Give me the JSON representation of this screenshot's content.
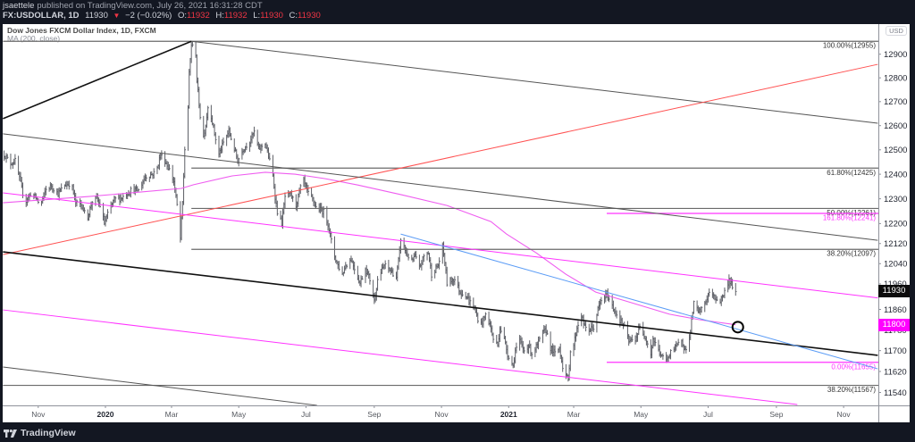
{
  "header": {
    "author": "jsaettele",
    "published_text": "published on TradingView.com, July 26, 2021 16:31:28 CDT",
    "symbol": "FX:USDOLLAR, 1D",
    "last": "11930",
    "change_arrow": "▼",
    "change": "−2 (−0.02%)",
    "ohlc": [
      {
        "key": "O:",
        "value": "11932"
      },
      {
        "key": "H:",
        "value": "11932"
      },
      {
        "key": "L:",
        "value": "11930"
      },
      {
        "key": "C:",
        "value": "11930"
      }
    ]
  },
  "legend": {
    "title": "Dow Jones FXCM Dollar Index, 1D, FXCM",
    "indicator": "MA (200, close)"
  },
  "price_axis": {
    "currency": "USD",
    "last_price_label": "11930",
    "last_price_value": 11930,
    "ma_price_label": "11800",
    "ma_price_value": 11800
  },
  "footer": {
    "brand": "TradingView",
    "logo_icon": "tradingview-logo-icon"
  },
  "colors": {
    "background": "#131722",
    "pane": "#ffffff",
    "down": "#f23645",
    "bars": "#5d5f66",
    "ma": "#ef5cf0",
    "magenta": "#ff33ff",
    "gray_line": "#555555",
    "fib_gray": "#6a6a6a",
    "black_line": "#111111",
    "blue": "#5b9cf6",
    "red": "#ff5252"
  },
  "chart_data": {
    "type": "line",
    "title": "Dow Jones FXCM Dollar Index, 1D, FXCM",
    "subtitle": "MA (200, close)",
    "xlabel": "",
    "ylabel": "USD",
    "scale": "log",
    "ylim": [
      11490,
      13010
    ],
    "grid": false,
    "legend_position": "top-left",
    "x_ticks": [
      {
        "label": "Nov",
        "date": "2019-11-01",
        "bold": false
      },
      {
        "label": "2020",
        "date": "2020-01-01",
        "bold": true
      },
      {
        "label": "Mar",
        "date": "2020-03-01",
        "bold": false
      },
      {
        "label": "May",
        "date": "2020-05-01",
        "bold": false
      },
      {
        "label": "Jul",
        "date": "2020-07-01",
        "bold": false
      },
      {
        "label": "Sep",
        "date": "2020-09-01",
        "bold": false
      },
      {
        "label": "Nov",
        "date": "2020-11-01",
        "bold": false
      },
      {
        "label": "2021",
        "date": "2021-01-01",
        "bold": true
      },
      {
        "label": "Mar",
        "date": "2021-03-01",
        "bold": false
      },
      {
        "label": "May",
        "date": "2021-05-01",
        "bold": false
      },
      {
        "label": "Jul",
        "date": "2021-07-01",
        "bold": false
      },
      {
        "label": "Sep",
        "date": "2021-09-01",
        "bold": false
      },
      {
        "label": "Nov",
        "date": "2021-11-01",
        "bold": false
      }
    ],
    "y_ticks": [
      "12900",
      "12800",
      "12700",
      "12600",
      "12500",
      "12400",
      "12300",
      "12200",
      "12120",
      "12040",
      "11960",
      "11860",
      "11780",
      "11700",
      "11620",
      "11540"
    ],
    "series": [
      {
        "name": "USDOLLAR daily bars (approx. close)",
        "x": [
          "2019-10-01",
          "2019-10-07",
          "2019-10-11",
          "2019-10-15",
          "2019-10-20",
          "2019-10-26",
          "2019-10-30",
          "2019-11-03",
          "2019-11-08",
          "2019-11-13",
          "2019-11-19",
          "2019-11-25",
          "2019-12-01",
          "2019-12-05",
          "2019-12-11",
          "2019-12-15",
          "2019-12-20",
          "2019-12-24",
          "2019-12-28",
          "2019-12-31",
          "2020-01-04",
          "2020-01-09",
          "2020-01-15",
          "2020-01-20",
          "2020-01-25",
          "2020-01-31",
          "2020-02-06",
          "2020-02-12",
          "2020-02-16",
          "2020-02-20",
          "2020-02-24",
          "2020-02-28",
          "2020-03-03",
          "2020-03-06",
          "2020-03-09",
          "2020-03-11",
          "2020-03-13",
          "2020-03-16",
          "2020-03-17",
          "2020-03-19",
          "2020-03-23",
          "2020-03-24",
          "2020-03-27",
          "2020-03-30",
          "2020-04-01",
          "2020-04-03",
          "2020-04-06",
          "2020-04-09",
          "2020-04-13",
          "2020-04-17",
          "2020-04-22",
          "2020-04-27",
          "2020-04-30",
          "2020-05-05",
          "2020-05-11",
          "2020-05-15",
          "2020-05-19",
          "2020-05-25",
          "2020-05-29",
          "2020-06-01",
          "2020-06-03",
          "2020-06-05",
          "2020-06-09",
          "2020-06-12",
          "2020-06-17",
          "2020-06-22",
          "2020-06-26",
          "2020-06-29",
          "2020-07-03",
          "2020-07-07",
          "2020-07-10",
          "2020-07-17",
          "2020-07-21",
          "2020-07-24",
          "2020-07-27",
          "2020-07-30",
          "2020-08-03",
          "2020-08-06",
          "2020-08-11",
          "2020-08-14",
          "2020-08-19",
          "2020-08-24",
          "2020-08-28",
          "2020-09-01",
          "2020-09-04",
          "2020-09-10",
          "2020-09-16",
          "2020-09-21",
          "2020-09-24",
          "2020-09-25",
          "2020-09-30",
          "2020-10-05",
          "2020-10-08",
          "2020-10-12",
          "2020-10-16",
          "2020-10-20",
          "2020-10-23",
          "2020-10-29",
          "2020-11-02",
          "2020-11-04",
          "2020-11-06",
          "2020-11-11",
          "2020-11-13",
          "2020-11-18",
          "2020-11-23",
          "2020-11-26",
          "2020-11-30",
          "2020-12-04",
          "2020-12-07",
          "2020-12-11",
          "2020-12-15",
          "2020-12-18",
          "2020-12-22",
          "2020-12-24",
          "2020-12-28",
          "2020-12-31",
          "2021-01-05",
          "2021-01-07",
          "2021-01-11",
          "2021-01-15",
          "2021-01-19",
          "2021-01-22",
          "2021-01-27",
          "2021-02-01",
          "2021-02-04",
          "2021-02-08",
          "2021-02-12",
          "2021-02-16",
          "2021-02-19",
          "2021-02-24",
          "2021-02-26",
          "2021-03-01",
          "2021-03-04",
          "2021-03-08",
          "2021-03-11",
          "2021-03-15",
          "2021-03-19",
          "2021-03-23",
          "2021-03-26",
          "2021-03-31",
          "2021-04-05",
          "2021-04-08",
          "2021-04-14",
          "2021-04-16",
          "2021-04-20",
          "2021-04-26",
          "2021-04-30",
          "2021-05-05",
          "2021-05-10",
          "2021-05-12",
          "2021-05-17",
          "2021-05-20",
          "2021-05-25",
          "2021-05-28",
          "2021-06-02",
          "2021-06-07",
          "2021-06-10",
          "2021-06-14",
          "2021-06-16",
          "2021-06-18",
          "2021-06-22",
          "2021-06-25",
          "2021-06-29",
          "2021-07-02",
          "2021-07-06",
          "2021-07-12",
          "2021-07-16",
          "2021-07-20",
          "2021-07-23",
          "2021-07-26"
        ],
        "values": [
          12481,
          12444,
          12455,
          12382,
          12284,
          12327,
          12302,
          12273,
          12338,
          12353,
          12320,
          12356,
          12364,
          12284,
          12273,
          12212,
          12291,
          12302,
          12262,
          12201,
          12248,
          12298,
          12302,
          12320,
          12338,
          12334,
          12389,
          12400,
          12408,
          12481,
          12455,
          12419,
          12371,
          12273,
          12140,
          12284,
          12503,
          12677,
          12816,
          12941,
          12903,
          12789,
          12640,
          12555,
          12603,
          12677,
          12640,
          12566,
          12481,
          12529,
          12577,
          12503,
          12455,
          12503,
          12536,
          12573,
          12503,
          12529,
          12455,
          12393,
          12309,
          12248,
          12201,
          12309,
          12316,
          12273,
          12345,
          12371,
          12320,
          12298,
          12266,
          12248,
          12201,
          12130,
          12069,
          12034,
          11998,
          12034,
          12058,
          12023,
          11963,
          12023,
          11977,
          11893,
          11977,
          12034,
          12012,
          11988,
          12083,
          12140,
          12083,
          12048,
          12069,
          12023,
          12069,
          12083,
          11998,
          12034,
          12105,
          12048,
          11963,
          11977,
          11977,
          11928,
          11918,
          11893,
          11873,
          11824,
          11803,
          11838,
          11803,
          11745,
          11721,
          11790,
          11745,
          11688,
          11641,
          11701,
          11735,
          11701,
          11721,
          11688,
          11721,
          11769,
          11779,
          11711,
          11688,
          11711,
          11641,
          11583,
          11701,
          11721,
          11790,
          11838,
          11790,
          11779,
          11790,
          11859,
          11893,
          11918,
          11873,
          11848,
          11803,
          11790,
          11735,
          11745,
          11790,
          11755,
          11688,
          11745,
          11701,
          11675,
          11665,
          11701,
          11711,
          11745,
          11701,
          11745,
          11814,
          11883,
          11848,
          11859,
          11893,
          11928,
          11907,
          11893,
          11928,
          11977,
          11953,
          11930
        ]
      },
      {
        "name": "MA (200, close)",
        "x": [
          "2019-09-30",
          "2019-12-17",
          "2020-01-27",
          "2020-03-10",
          "2020-03-21",
          "2020-04-25",
          "2020-05-25",
          "2020-06-21",
          "2020-07-18",
          "2020-08-17",
          "2020-09-26",
          "2020-11-06",
          "2020-12-16",
          "2020-12-30",
          "2021-01-26",
          "2021-02-22",
          "2021-03-21",
          "2021-04-17",
          "2021-05-27",
          "2021-06-23",
          "2021-07-26"
        ],
        "values": [
          12284,
          12309,
          12325,
          12342,
          12357,
          12393,
          12408,
          12400,
          12382,
          12356,
          12316,
          12273,
          12208,
          12158,
          12083,
          11998,
          11928,
          11893,
          11841,
          11820,
          11800
        ]
      }
    ],
    "annotations": {
      "fib_levels": [
        {
          "label": "100.00%(12955)",
          "price": 12955,
          "start": "2019-09-30",
          "color": "#6a6a6a"
        },
        {
          "label": "61.80%(12425)",
          "price": 12425,
          "start": "2020-03-19",
          "color": "#6a6a6a"
        },
        {
          "label": "50.00%(12261)",
          "price": 12261,
          "start": "2020-03-19",
          "color": "#6a6a6a"
        },
        {
          "label": "161.80%(12241)",
          "price": 12241,
          "start": "2021-03-31",
          "color": "#ff33ff"
        },
        {
          "label": "38.20%(12097)",
          "price": 12097,
          "start": "2020-03-19",
          "color": "#6a6a6a"
        },
        {
          "label": "0.00%(11655)",
          "price": 11655,
          "start": "2021-03-31",
          "color": "#ff33ff"
        },
        {
          "label": "38.20%(11567)",
          "price": 11567,
          "start": "2019-09-30",
          "color": "#6a6a6a"
        }
      ],
      "trendlines": [
        {
          "name": "rising-trendline-to-peak",
          "start": {
            "date": "2019-09-30",
            "price": 12629
          },
          "end": {
            "date": "2020-03-19",
            "price": 12955
          },
          "color": "#111111",
          "width": 1.6
        },
        {
          "name": "falling-line-from-peak",
          "start": {
            "date": "2020-03-19",
            "price": 12955
          },
          "end": {
            "date": "2021-12-02",
            "price": 12610
          },
          "color": "#555555",
          "width": 1
        },
        {
          "name": "red-rising-line",
          "start": {
            "date": "2019-09-30",
            "price": 12076
          },
          "end": {
            "date": "2021-12-02",
            "price": 12857
          },
          "color": "#ff5252",
          "width": 1
        },
        {
          "name": "upper-falling-line",
          "start": {
            "date": "2019-09-30",
            "price": 12566
          },
          "end": {
            "date": "2021-12-02",
            "price": 12133
          },
          "color": "#555555",
          "width": 1
        },
        {
          "name": "magenta-channel-top",
          "start": {
            "date": "2019-09-30",
            "price": 12324
          },
          "end": {
            "date": "2021-12-02",
            "price": 11905
          },
          "color": "#ff33ff",
          "width": 1
        },
        {
          "name": "black-channel-line",
          "start": {
            "date": "2019-09-30",
            "price": 12087
          },
          "end": {
            "date": "2021-12-02",
            "price": 11682
          },
          "color": "#111111",
          "width": 1.6
        },
        {
          "name": "blue-trendline",
          "start": {
            "date": "2020-09-25",
            "price": 12158
          },
          "end": {
            "date": "2021-12-02",
            "price": 11630
          },
          "color": "#5b9cf6",
          "width": 1
        },
        {
          "name": "magenta-channel-bottom",
          "start": {
            "date": "2019-09-30",
            "price": 11858
          },
          "end": {
            "date": "2021-09-20",
            "price": 11494
          },
          "color": "#ff33ff",
          "width": 1
        },
        {
          "name": "lower-falling-line",
          "start": {
            "date": "2019-09-30",
            "price": 11637
          },
          "end": {
            "date": "2020-07-11",
            "price": 11491
          },
          "color": "#555555",
          "width": 1
        }
      ],
      "circle": {
        "date": "2021-07-28",
        "price": 11791,
        "color": "#000000"
      }
    },
    "last_price": 11930,
    "ma_last": 11800
  }
}
